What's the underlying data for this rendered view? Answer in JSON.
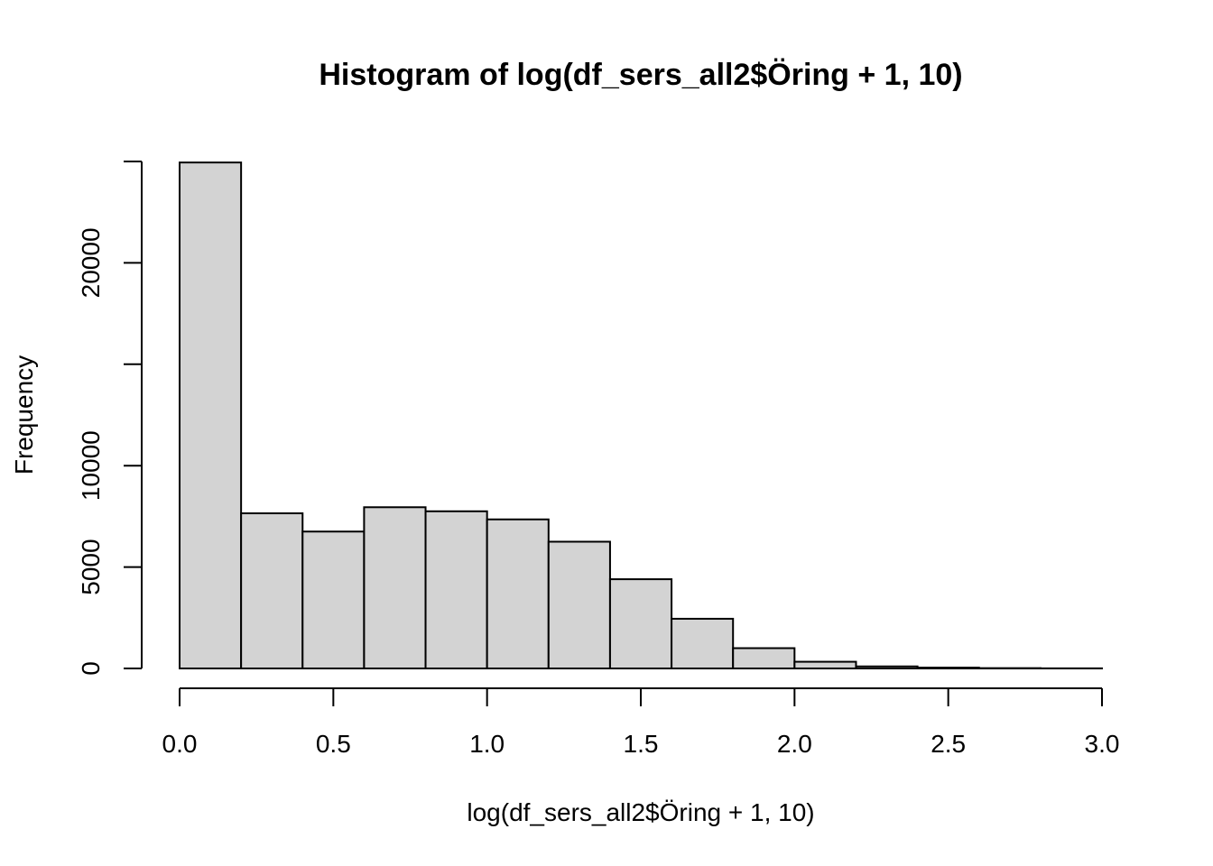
{
  "chart_data": {
    "type": "bar",
    "title": "Histogram of log(df_sers_all2$Öring + 1, 10)",
    "xlabel": "log(df_sers_all2$Öring + 1, 10)",
    "ylabel": "Frequency",
    "bins": [
      {
        "x0": 0.0,
        "x1": 0.2,
        "count": 24950
      },
      {
        "x0": 0.2,
        "x1": 0.4,
        "count": 7650
      },
      {
        "x0": 0.4,
        "x1": 0.6,
        "count": 6750
      },
      {
        "x0": 0.6,
        "x1": 0.8,
        "count": 7950
      },
      {
        "x0": 0.8,
        "x1": 1.0,
        "count": 7750
      },
      {
        "x0": 1.0,
        "x1": 1.2,
        "count": 7350
      },
      {
        "x0": 1.2,
        "x1": 1.4,
        "count": 6250
      },
      {
        "x0": 1.4,
        "x1": 1.6,
        "count": 4400
      },
      {
        "x0": 1.6,
        "x1": 1.8,
        "count": 2450
      },
      {
        "x0": 1.8,
        "x1": 2.0,
        "count": 1000
      },
      {
        "x0": 2.0,
        "x1": 2.2,
        "count": 330
      },
      {
        "x0": 2.2,
        "x1": 2.4,
        "count": 100
      },
      {
        "x0": 2.4,
        "x1": 2.6,
        "count": 40
      },
      {
        "x0": 2.6,
        "x1": 2.8,
        "count": 15
      },
      {
        "x0": 2.8,
        "x1": 3.0,
        "count": 5
      }
    ],
    "xlim": [
      0.0,
      3.0
    ],
    "ylim": [
      0,
      25000
    ],
    "xticks": [
      0.0,
      0.5,
      1.0,
      1.5,
      2.0,
      2.5,
      3.0
    ],
    "xtick_labels": [
      "0.0",
      "0.5",
      "1.0",
      "1.5",
      "2.0",
      "2.5",
      "3.0"
    ],
    "yticks": [
      0,
      5000,
      10000,
      15000,
      20000,
      25000
    ],
    "ytick_labels": [
      "0",
      "5000",
      "10000",
      "",
      "20000",
      ""
    ],
    "colors": {
      "bar_fill": "#d3d3d3",
      "bar_stroke": "#000000"
    },
    "grid": false
  }
}
